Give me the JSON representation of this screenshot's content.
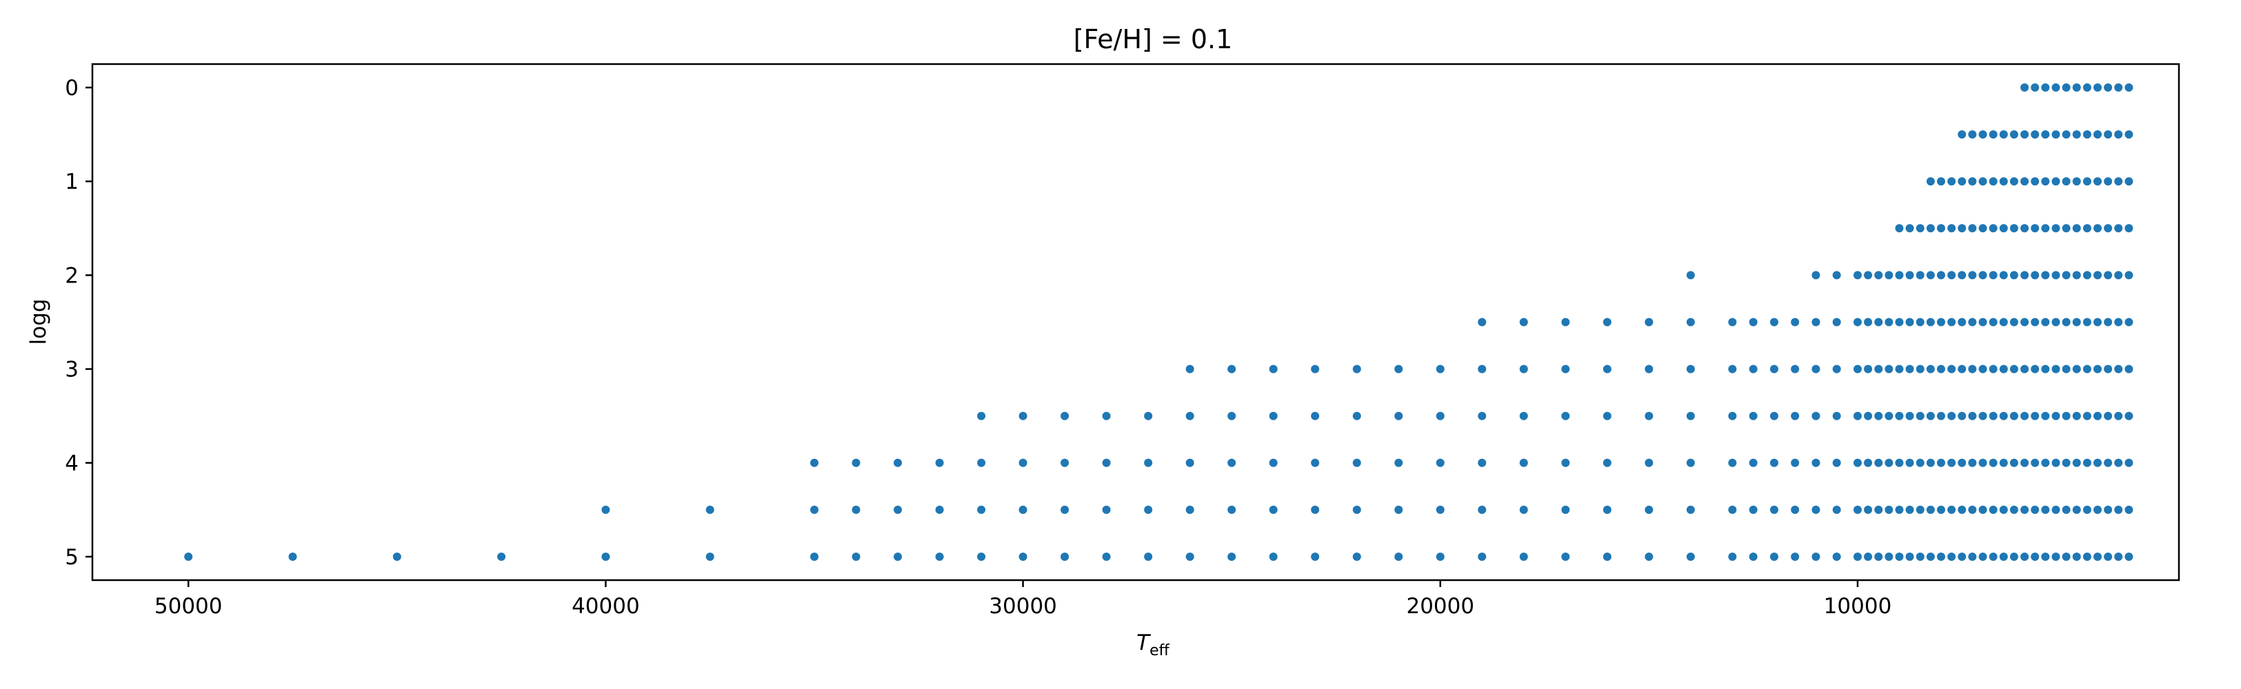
{
  "chart_data": {
    "type": "scatter",
    "title": "[Fe/H] = 0.1",
    "xlabel": "T",
    "xlabel_subscript": "eff",
    "ylabel": "logg",
    "x_inverted": true,
    "y_inverted": true,
    "xlim": [
      52300,
      2300
    ],
    "ylim": [
      -0.25,
      5.25
    ],
    "xticks": [
      50000,
      40000,
      30000,
      20000,
      10000
    ],
    "xtick_labels": [
      "50000",
      "40000",
      "30000",
      "20000",
      "10000"
    ],
    "yticks": [
      0,
      1,
      2,
      3,
      4,
      5
    ],
    "ytick_labels": [
      "0",
      "1",
      "2",
      "3",
      "4",
      "5"
    ],
    "grid": false,
    "marker_color": "#1f77b4",
    "temperature_groups": [
      {
        "teff": [
          50000,
          47500,
          45000,
          42500
        ],
        "logg": [
          5.0
        ]
      },
      {
        "teff": [
          40000,
          37500
        ],
        "logg": [
          4.5,
          5.0
        ]
      },
      {
        "teff": [
          35000,
          34000,
          33000,
          32000
        ],
        "logg": [
          4.0,
          4.5,
          5.0
        ]
      },
      {
        "teff": [
          31000,
          30000,
          29000,
          28000,
          27000
        ],
        "logg": [
          3.5,
          4.0,
          4.5,
          5.0
        ]
      },
      {
        "teff": [
          26000,
          25000,
          24000,
          23000,
          22000,
          21000,
          20000
        ],
        "logg": [
          3.0,
          3.5,
          4.0,
          4.5,
          5.0
        ]
      },
      {
        "teff": [
          19000,
          18000,
          17000,
          16000,
          15000,
          13000,
          12500,
          12000,
          11500
        ],
        "logg": [
          2.5,
          3.0,
          3.5,
          4.0,
          4.5,
          5.0
        ]
      },
      {
        "teff": [
          14000,
          11000,
          10500
        ],
        "logg": [
          2.0,
          2.5,
          3.0,
          3.5,
          4.0,
          4.5,
          5.0
        ]
      },
      {
        "teff": [
          10000,
          9750,
          9500,
          9250
        ],
        "logg": [
          2.0,
          2.5,
          3.0,
          3.5,
          4.0,
          4.5,
          5.0
        ]
      },
      {
        "teff": [
          9000,
          8750,
          8500
        ],
        "logg": [
          1.5,
          2.0,
          2.5,
          3.0,
          3.5,
          4.0,
          4.5,
          5.0
        ]
      },
      {
        "teff": [
          8250,
          8000,
          7750
        ],
        "logg": [
          1.0,
          1.5,
          2.0,
          2.5,
          3.0,
          3.5,
          4.0,
          4.5,
          5.0
        ]
      },
      {
        "teff": [
          7500,
          7250,
          7000,
          6750,
          6500,
          6250
        ],
        "logg": [
          0.5,
          1.0,
          1.5,
          2.0,
          2.5,
          3.0,
          3.5,
          4.0,
          4.5,
          5.0
        ]
      },
      {
        "teff": [
          6000,
          5750,
          5500,
          5250,
          5000,
          4750,
          4500,
          4250,
          4000,
          3750,
          3500
        ],
        "logg": [
          0.0,
          0.5,
          1.0,
          1.5,
          2.0,
          2.5,
          3.0,
          3.5,
          4.0,
          4.5,
          5.0
        ]
      }
    ]
  }
}
